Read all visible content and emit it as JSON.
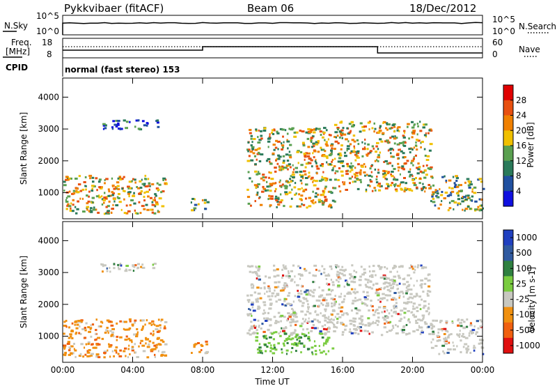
{
  "header": {
    "station": "Pykkvibaer (fitACF)",
    "beam": "Beam 06",
    "date": "18/Dec/2012"
  },
  "top_panels": {
    "nsky_label": "N.Sky",
    "nsky_ticks": [
      "10^5",
      "10^0"
    ],
    "nsearch_label": "N.Search",
    "nsearch_ticks": [
      "10^5",
      "10^0"
    ],
    "freq_label_1": "Freq.",
    "freq_label_2": "[MHz]",
    "freq_ticks": [
      "18",
      "8"
    ],
    "nave_label": "Nave",
    "nave_ticks": [
      "60",
      "0"
    ],
    "cpid_label": "CPID",
    "cpid_text": "normal (fast stereo) 153"
  },
  "colors": {
    "power_scale": [
      "#1010e0",
      "#2050a0",
      "#2a7a5a",
      "#5aa050",
      "#f0c000",
      "#f08000",
      "#e85010",
      "#e00000"
    ],
    "velocity_scale": [
      "#2040c0",
      "#305aa0",
      "#2f8040",
      "#7acc40",
      "#c8c8c0",
      "#f09010",
      "#f06010",
      "#e01010"
    ]
  },
  "chart_data": [
    {
      "type": "heatmap",
      "name": "power",
      "ylabel": "Slant Range [km]",
      "yticks": [
        "1000",
        "2000",
        "3000",
        "4000"
      ],
      "colorbar_label": "Power [dB]",
      "colorbar_ticks": [
        "4",
        "8",
        "12",
        "16",
        "20",
        "24",
        "28"
      ],
      "xticks": [
        "00:00",
        "04:00",
        "08:00",
        "12:00",
        "16:00",
        "20:00",
        "00:00"
      ],
      "xlim_hours": [
        0,
        24
      ],
      "ylim_km": [
        180,
        4600
      ],
      "regions": [
        {
          "t0": 0.0,
          "t1": 5.9,
          "r0": 300,
          "r1": 1500,
          "level": "high"
        },
        {
          "t0": 2.0,
          "t1": 5.5,
          "r0": 2950,
          "r1": 3250,
          "level": "low"
        },
        {
          "t0": 7.3,
          "t1": 8.3,
          "r0": 400,
          "r1": 800,
          "level": "mid"
        },
        {
          "t0": 10.5,
          "t1": 15.5,
          "r0": 500,
          "r1": 3000,
          "level": "high"
        },
        {
          "t0": 15.5,
          "t1": 21.0,
          "r0": 1000,
          "r1": 3200,
          "level": "high"
        },
        {
          "t0": 21.0,
          "t1": 24.0,
          "r0": 400,
          "r1": 1500,
          "level": "mid"
        }
      ]
    },
    {
      "type": "heatmap",
      "name": "velocity",
      "ylabel": "Slant Range [km]",
      "yticks": [
        "1000",
        "2000",
        "3000",
        "4000"
      ],
      "colorbar_label": "Velocity [m s-1]",
      "colorbar_ticks": [
        "1000",
        "500",
        "100",
        "25",
        "-25",
        "-100",
        "-500",
        "-1000"
      ],
      "xticks": [
        "00:00",
        "04:00",
        "08:00",
        "12:00",
        "16:00",
        "20:00",
        "00:00"
      ],
      "xlabel": "Time UT",
      "xlim_hours": [
        0,
        24
      ],
      "ylim_km": [
        180,
        4600
      ],
      "regions": [
        {
          "t0": 0.0,
          "t1": 5.9,
          "r0": 300,
          "r1": 1500,
          "level": "negative"
        },
        {
          "t0": 2.0,
          "t1": 5.5,
          "r0": 2950,
          "r1": 3250,
          "level": "near-zero"
        },
        {
          "t0": 7.3,
          "t1": 8.3,
          "r0": 400,
          "r1": 800,
          "level": "negative"
        },
        {
          "t0": 10.5,
          "t1": 21.0,
          "r0": 1000,
          "r1": 3200,
          "level": "near-zero"
        },
        {
          "t0": 11.0,
          "t1": 15.5,
          "r0": 400,
          "r1": 1100,
          "level": "positive"
        },
        {
          "t0": 21.0,
          "t1": 24.0,
          "r0": 400,
          "r1": 1500,
          "level": "near-zero"
        }
      ]
    }
  ]
}
